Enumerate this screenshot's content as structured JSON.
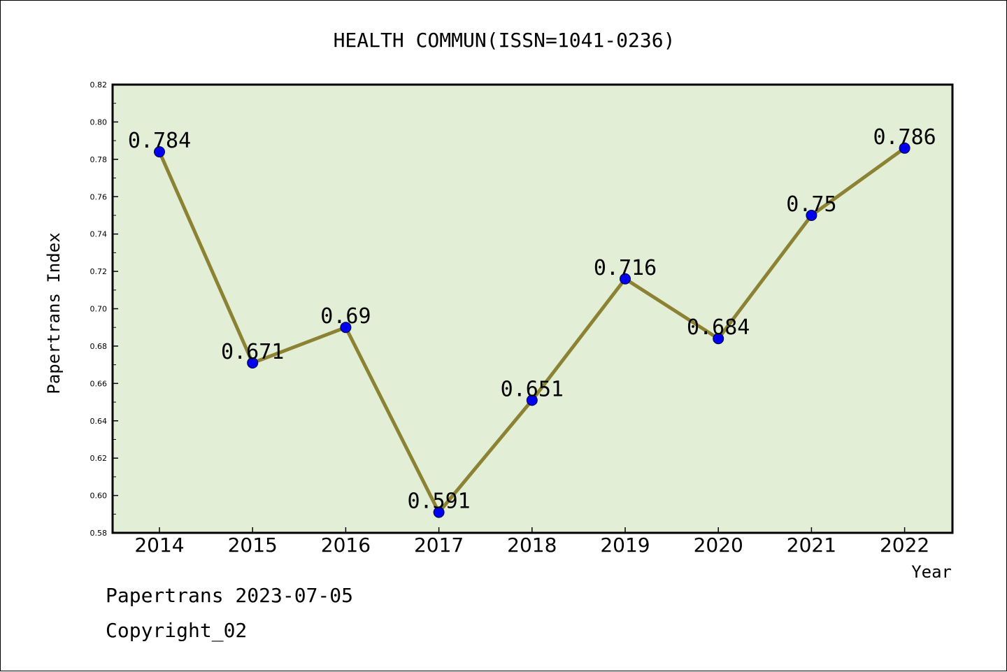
{
  "chart_data": {
    "type": "line",
    "title": "HEALTH COMMUN(ISSN=1041-0236)",
    "xlabel": "Year",
    "ylabel": "Papertrans Index",
    "categories": [
      "2014",
      "2015",
      "2016",
      "2017",
      "2018",
      "2019",
      "2020",
      "2021",
      "2022"
    ],
    "series": [
      {
        "values": [
          0.784,
          0.671,
          0.69,
          0.591,
          0.651,
          0.716,
          0.684,
          0.75,
          0.786
        ],
        "labels": [
          "0.784",
          "0.671",
          "0.69",
          "0.591",
          "0.651",
          "0.716",
          "0.684",
          "0.75",
          "0.786"
        ]
      }
    ],
    "ylim": [
      0.58,
      0.82
    ],
    "yticks": [
      "0.58",
      "0.60",
      "0.62",
      "0.64",
      "0.66",
      "0.68",
      "0.70",
      "0.72",
      "0.74",
      "0.76",
      "0.78",
      "0.80",
      "0.82"
    ],
    "grid": false,
    "legend": "none",
    "colors": {
      "plot_background": "#e2efd6",
      "line": "#8c8233",
      "marker": "#0000ee",
      "axis": "#000000"
    }
  },
  "footer": {
    "line1": "Papertrans 2023-07-05",
    "line2": "Copyright_02"
  }
}
